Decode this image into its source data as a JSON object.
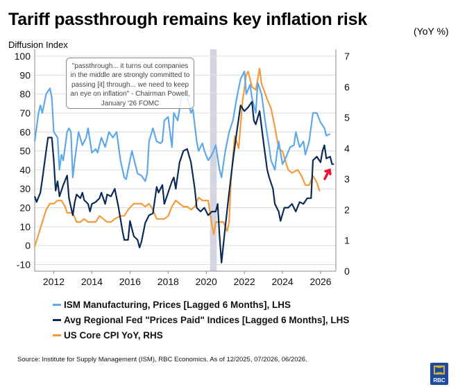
{
  "title": "Tariff passthrough remains key inflation risk",
  "left_axis_label": "Diffusion Index",
  "right_axis_label": "(YoY %)",
  "annotation": "\"passthrough... it turns out companies in the middle are strongly committed to passing [it] through... we need to keep an eye on inflation\" - Chairman Powell, January '26 FOMC",
  "source": "Source: Institute for Supply Management (ISM), RBC Economics. As of 12/2025, 07/2026, 06/2026.",
  "logo_text": "RBC",
  "chart_data": {
    "type": "line",
    "xlim": [
      2011.0,
      2026.8
    ],
    "x_ticks": [
      "2012",
      "2014",
      "2016",
      "2018",
      "2020",
      "2022",
      "2024",
      "2026"
    ],
    "left_ylim": [
      -13.5,
      100
    ],
    "left_ticks": [
      "100",
      "90",
      "80",
      "70",
      "60",
      "50",
      "40",
      "30",
      "20",
      "10",
      "0",
      "-10"
    ],
    "right_ylim": [
      0,
      7
    ],
    "right_ticks": [
      "7",
      "6",
      "5",
      "4",
      "3",
      "2",
      "1",
      "0"
    ],
    "grid": true,
    "legend_position": "bottom",
    "recession_shading": [
      2020.2,
      2020.55
    ],
    "series": [
      {
        "name": "ISM Manufacturing, Prices [Lagged 6 Months], LHS",
        "axis": "left",
        "color": "#5ea8ea",
        "x": [
          2011.0,
          2011.2,
          2011.3,
          2011.4,
          2011.6,
          2011.8,
          2011.9,
          2012.0,
          2012.2,
          2012.3,
          2012.4,
          2012.5,
          2012.7,
          2012.8,
          2012.9,
          2013.0,
          2013.1,
          2013.3,
          2013.5,
          2013.7,
          2013.8,
          2014.0,
          2014.2,
          2014.3,
          2014.5,
          2014.7,
          2014.9,
          2015.1,
          2015.3,
          2015.5,
          2015.7,
          2015.8,
          2016.0,
          2016.1,
          2016.2,
          2016.4,
          2016.6,
          2016.8,
          2016.9,
          2017.0,
          2017.2,
          2017.4,
          2017.6,
          2017.7,
          2017.8,
          2018.0,
          2018.1,
          2018.2,
          2018.3,
          2018.5,
          2018.7,
          2018.8,
          2019.0,
          2019.2,
          2019.3,
          2019.5,
          2019.6,
          2019.8,
          2019.9,
          2020.1,
          2020.3,
          2020.5,
          2020.7,
          2020.8,
          2021.0,
          2021.2,
          2021.4,
          2021.6,
          2021.8,
          2022.0,
          2022.1,
          2022.3,
          2022.4,
          2022.6,
          2022.7,
          2022.9,
          2023.1,
          2023.3,
          2023.4,
          2023.6,
          2023.7,
          2023.8,
          2024.0,
          2024.2,
          2024.4,
          2024.6,
          2024.7,
          2024.9,
          2025.1,
          2025.2,
          2025.4,
          2025.6,
          2025.8,
          2026.0,
          2026.2,
          2026.3,
          2026.5
        ],
        "y": [
          55,
          70,
          74,
          70,
          80,
          83,
          78,
          60,
          57,
          40,
          48,
          45,
          60,
          62,
          60,
          36,
          45,
          60,
          53,
          57,
          62,
          49,
          51,
          49,
          57,
          52,
          60,
          57,
          60,
          45,
          36,
          35,
          45,
          50,
          46,
          38,
          37,
          34,
          38,
          55,
          62,
          55,
          54,
          55,
          66,
          68,
          60,
          52,
          70,
          66,
          78,
          80,
          79,
          70,
          72,
          55,
          50,
          54,
          50,
          45,
          48,
          53,
          40,
          36,
          50,
          60,
          66,
          78,
          88,
          92,
          80,
          85,
          78,
          70,
          86,
          80,
          65,
          52,
          45,
          40,
          48,
          55,
          43,
          47,
          52,
          53,
          60,
          52,
          55,
          48,
          55,
          70,
          70,
          65,
          62,
          58,
          59
        ]
      },
      {
        "name": "Avg Regional Fed \"Prices Paid\" Indices [Lagged 6 Months], LHS",
        "axis": "left",
        "color": "#0b2a56",
        "x": [
          2011.0,
          2011.1,
          2011.3,
          2011.4,
          2011.6,
          2011.7,
          2011.9,
          2012.0,
          2012.1,
          2012.2,
          2012.3,
          2012.5,
          2012.7,
          2012.8,
          2013.0,
          2013.1,
          2013.2,
          2013.4,
          2013.5,
          2013.6,
          2013.8,
          2013.9,
          2014.0,
          2014.2,
          2014.4,
          2014.5,
          2014.7,
          2014.8,
          2015.0,
          2015.2,
          2015.4,
          2015.6,
          2015.7,
          2015.9,
          2016.0,
          2016.2,
          2016.4,
          2016.5,
          2016.6,
          2016.8,
          2017.0,
          2017.2,
          2017.4,
          2017.5,
          2017.7,
          2017.8,
          2018.0,
          2018.2,
          2018.3,
          2018.4,
          2018.6,
          2018.8,
          2019.0,
          2019.2,
          2019.4,
          2019.5,
          2019.7,
          2019.9,
          2020.1,
          2020.3,
          2020.5,
          2020.6,
          2020.7,
          2020.8,
          2021.0,
          2021.2,
          2021.4,
          2021.6,
          2021.8,
          2022.0,
          2022.2,
          2022.4,
          2022.5,
          2022.6,
          2022.8,
          2023.0,
          2023.2,
          2023.3,
          2023.5,
          2023.6,
          2023.8,
          2023.9,
          2024.1,
          2024.3,
          2024.5,
          2024.7,
          2024.9,
          2025.1,
          2025.3,
          2025.5,
          2025.6,
          2025.8,
          2026.0,
          2026.1,
          2026.2,
          2026.3,
          2026.5,
          2026.6,
          2026.7
        ],
        "y": [
          26,
          23,
          28,
          35,
          50,
          57,
          57,
          45,
          29,
          34,
          26,
          32,
          37,
          25,
          16,
          23,
          27,
          25,
          28,
          24,
          22,
          18,
          22,
          23,
          25,
          28,
          22,
          27,
          26,
          30,
          20,
          8,
          3,
          3,
          13,
          5,
          3,
          -1,
          2,
          12,
          16,
          17,
          31,
          28,
          32,
          22,
          28,
          34,
          36,
          30,
          44,
          50,
          51,
          44,
          30,
          20,
          18,
          20,
          16,
          18,
          18,
          22,
          5,
          -9,
          10,
          28,
          45,
          60,
          74,
          71,
          73,
          76,
          66,
          64,
          71,
          55,
          40,
          36,
          30,
          22,
          18,
          13,
          20,
          20,
          22,
          18,
          23,
          22,
          25,
          25,
          45,
          47,
          44,
          50,
          53,
          46,
          47,
          43,
          43
        ]
      },
      {
        "name": "US Core CPI YoY, RHS",
        "axis": "right",
        "color": "#f39b3c",
        "x": [
          2011.0,
          2011.2,
          2011.4,
          2011.6,
          2011.8,
          2012.0,
          2012.2,
          2012.4,
          2012.6,
          2012.7,
          2013.0,
          2013.2,
          2013.4,
          2013.6,
          2013.8,
          2014.0,
          2014.2,
          2014.4,
          2014.6,
          2014.8,
          2015.0,
          2015.2,
          2015.5,
          2015.7,
          2015.9,
          2016.2,
          2016.4,
          2016.6,
          2016.8,
          2017.0,
          2017.2,
          2017.4,
          2017.6,
          2017.8,
          2018.0,
          2018.2,
          2018.4,
          2018.6,
          2018.8,
          2019.0,
          2019.2,
          2019.4,
          2019.6,
          2019.8,
          2020.1,
          2020.3,
          2020.4,
          2020.5,
          2020.7,
          2020.9,
          2021.1,
          2021.2,
          2021.3,
          2021.5,
          2021.7,
          2021.9,
          2022.1,
          2022.2,
          2022.4,
          2022.6,
          2022.8,
          2022.9,
          2023.2,
          2023.4,
          2023.6,
          2023.8,
          2024.0,
          2024.3,
          2024.5,
          2024.8,
          2025.0,
          2025.2,
          2025.4,
          2025.6,
          2025.8,
          2025.95
        ],
        "y": [
          0.8,
          1.2,
          1.6,
          2.0,
          2.2,
          2.2,
          2.3,
          2.3,
          2.1,
          1.9,
          1.9,
          1.6,
          1.6,
          1.7,
          1.6,
          1.6,
          1.6,
          1.8,
          1.7,
          1.6,
          1.6,
          1.7,
          1.8,
          1.8,
          2.0,
          2.2,
          2.2,
          2.2,
          2.1,
          2.2,
          2.0,
          1.7,
          1.7,
          1.7,
          1.8,
          2.1,
          2.3,
          2.2,
          2.1,
          2.1,
          2.0,
          2.1,
          2.4,
          2.3,
          2.3,
          1.5,
          1.2,
          1.6,
          1.6,
          1.6,
          1.3,
          1.6,
          3.0,
          4.4,
          4.0,
          5.5,
          6.4,
          6.5,
          6.0,
          5.9,
          6.6,
          6.1,
          5.6,
          5.3,
          4.7,
          4.0,
          3.9,
          3.3,
          3.2,
          3.3,
          3.1,
          2.8,
          2.8,
          3.1,
          2.9,
          2.6
        ]
      }
    ]
  }
}
